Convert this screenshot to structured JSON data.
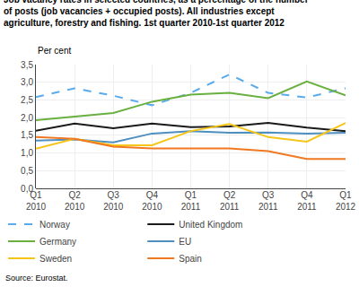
{
  "chart_data": {
    "type": "line",
    "title": "Job vacancy rates in selected countries, as a percentage of the number\nof posts (job vacancies + occupied posts). All industries except\nagriculture, forestry and fishing. 1st quarter 2010-1st quarter 2012",
    "ylabel": "Per cent",
    "source": "Source: Eurostat.",
    "categories": [
      "Q1\n2010",
      "Q2\n2010",
      "Q3\n2010",
      "Q4\n2010",
      "Q1\n2011",
      "Q2\n2011",
      "Q3\n2011",
      "Q4\n2011",
      "Q1\n2012"
    ],
    "series": [
      {
        "name": "Norway",
        "color": "#5aabeb",
        "line_style": "dashed",
        "values": [
          2.58,
          2.83,
          2.62,
          2.35,
          2.7,
          3.22,
          2.7,
          2.57,
          2.83
        ]
      },
      {
        "name": "United Kingdom",
        "color": "#1a1a1a",
        "line_style": "solid",
        "values": [
          1.63,
          1.83,
          1.7,
          1.83,
          1.73,
          1.75,
          1.85,
          1.72,
          1.62
        ]
      },
      {
        "name": "Germany",
        "color": "#6ab040",
        "line_style": "solid",
        "values": [
          1.93,
          2.03,
          2.13,
          2.45,
          2.65,
          2.7,
          2.55,
          3.02,
          2.63
        ]
      },
      {
        "name": "EU",
        "color": "#4f8fc0",
        "line_style": "solid",
        "values": [
          1.35,
          1.38,
          1.3,
          1.55,
          1.62,
          1.57,
          1.58,
          1.55,
          1.57
        ]
      },
      {
        "name": "Sweden",
        "color": "#f5c518",
        "line_style": "solid",
        "values": [
          1.12,
          1.4,
          1.22,
          1.22,
          1.62,
          1.82,
          1.45,
          1.32,
          1.85
        ]
      },
      {
        "name": "Spain",
        "color": "#f07820",
        "line_style": "solid",
        "values": [
          1.45,
          1.4,
          1.18,
          1.13,
          1.13,
          1.13,
          1.05,
          0.83,
          0.83
        ]
      }
    ],
    "ylim": [
      0.0,
      3.5
    ],
    "yticks": [
      {
        "value": 0.0,
        "label": "0,0"
      },
      {
        "value": 0.5,
        "label": "0,5"
      },
      {
        "value": 1.0,
        "label": "1,0"
      },
      {
        "value": 1.5,
        "label": "1,5"
      },
      {
        "value": 2.0,
        "label": "2,0"
      },
      {
        "value": 2.5,
        "label": "2,5"
      },
      {
        "value": 3.0,
        "label": "3,0"
      },
      {
        "value": 3.5,
        "label": "3,5"
      }
    ],
    "grid": true,
    "legend": "bottom"
  }
}
